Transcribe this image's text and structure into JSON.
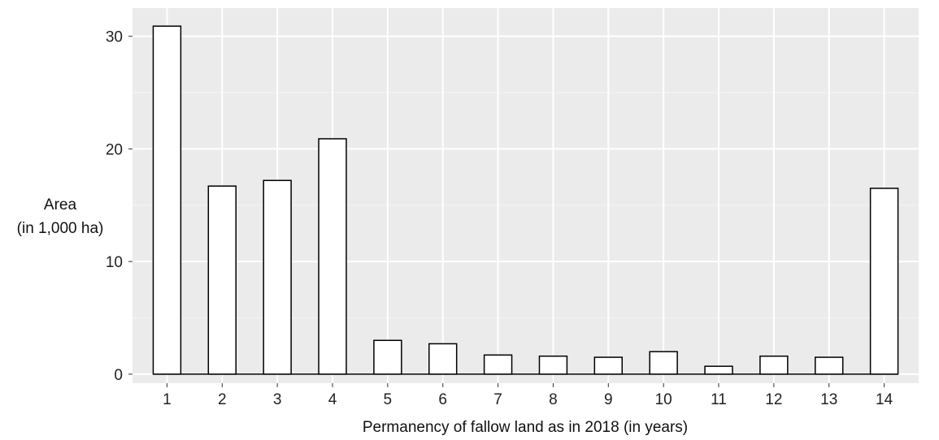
{
  "chart_data": {
    "type": "bar",
    "title": "",
    "xlabel": "Permanency of fallow land as in 2018 (in years)",
    "ylabel_lines": [
      "Area",
      "(in 1,000 ha)"
    ],
    "categories": [
      "1",
      "2",
      "3",
      "4",
      "5",
      "6",
      "7",
      "8",
      "9",
      "10",
      "11",
      "12",
      "13",
      "14"
    ],
    "values": [
      30.9,
      16.7,
      17.2,
      20.9,
      3.0,
      2.7,
      1.7,
      1.6,
      1.5,
      2.0,
      0.7,
      1.6,
      1.5,
      16.5
    ],
    "yticks": [
      0,
      10,
      20,
      30
    ],
    "ylim": [
      -0.8,
      32.5
    ],
    "grid": true,
    "colors": {
      "panel": "#ebebeb",
      "grid_major": "#ffffff",
      "grid_minor": "#f5f5f5",
      "bar_fill": "#ffffff",
      "bar_stroke": "#000000"
    }
  }
}
